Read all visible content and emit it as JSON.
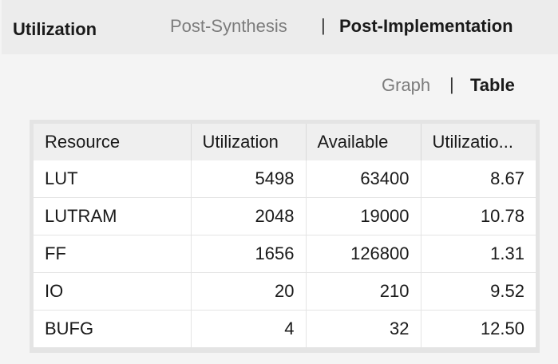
{
  "header": {
    "title": "Utilization",
    "tabs": [
      {
        "label": "Post-Synthesis",
        "active": false
      },
      {
        "label": "Post-Implementation",
        "active": true
      }
    ],
    "separator": "|"
  },
  "view": {
    "options": [
      {
        "label": "Graph",
        "active": false
      },
      {
        "label": "Table",
        "active": true
      }
    ],
    "separator": "|"
  },
  "table": {
    "columns": [
      "Resource",
      "Utilization",
      "Available",
      "Utilizatio..."
    ],
    "rows": [
      [
        "LUT",
        "5498",
        "63400",
        "8.67"
      ],
      [
        "LUTRAM",
        "2048",
        "19000",
        "10.78"
      ],
      [
        "FF",
        "1656",
        "126800",
        "1.31"
      ],
      [
        "IO",
        "20",
        "210",
        "9.52"
      ],
      [
        "BUFG",
        "4",
        "32",
        "12.50"
      ]
    ]
  }
}
